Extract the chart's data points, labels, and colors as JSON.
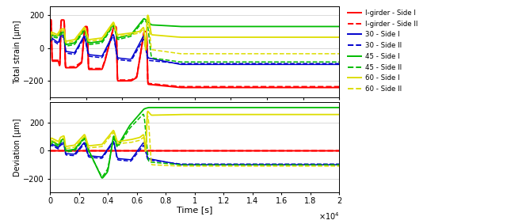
{
  "colors": {
    "red": "#FF0000",
    "blue": "#0000CD",
    "green": "#00BB00",
    "yellow": "#DDDD00"
  },
  "top_ylabel": "Total strain [μm]",
  "bottom_ylabel": "Deviation [μm]",
  "xlabel": "Time [s]",
  "legend_labels": [
    "I-girder - Side I",
    "I-girder - Side II",
    "30 - Side I",
    "30 - Side II",
    "45 - Side I",
    "45 - Side II",
    "60 - Side I",
    "60 - Side II"
  ]
}
